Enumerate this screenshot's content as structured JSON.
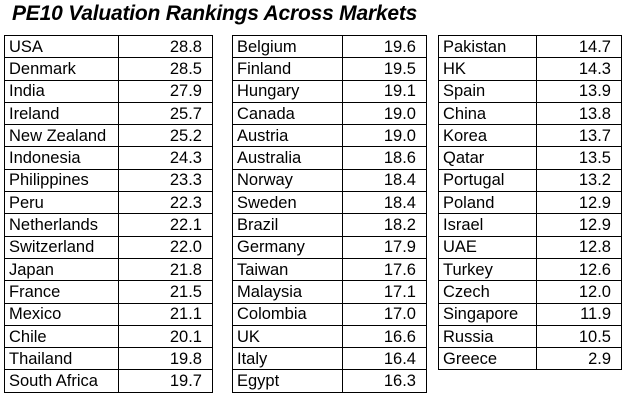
{
  "title": "PE10 Valuation Rankings Across Markets",
  "chart_data": {
    "type": "table",
    "title": "PE10 Valuation Rankings Across Markets",
    "columns": [
      [
        {
          "country": "USA",
          "value": "28.8"
        },
        {
          "country": "Denmark",
          "value": "28.5"
        },
        {
          "country": "India",
          "value": "27.9"
        },
        {
          "country": "Ireland",
          "value": "25.7"
        },
        {
          "country": "New Zealand",
          "value": "25.2"
        },
        {
          "country": "Indonesia",
          "value": "24.3"
        },
        {
          "country": "Philippines",
          "value": "23.3"
        },
        {
          "country": "Peru",
          "value": "22.3"
        },
        {
          "country": "Netherlands",
          "value": "22.1"
        },
        {
          "country": "Switzerland",
          "value": "22.0"
        },
        {
          "country": "Japan",
          "value": "21.8"
        },
        {
          "country": "France",
          "value": "21.5"
        },
        {
          "country": "Mexico",
          "value": "21.1"
        },
        {
          "country": "Chile",
          "value": "20.1"
        },
        {
          "country": "Thailand",
          "value": "19.8"
        },
        {
          "country": "South Africa",
          "value": "19.7"
        }
      ],
      [
        {
          "country": "Belgium",
          "value": "19.6"
        },
        {
          "country": "Finland",
          "value": "19.5"
        },
        {
          "country": "Hungary",
          "value": "19.1"
        },
        {
          "country": "Canada",
          "value": "19.0"
        },
        {
          "country": "Austria",
          "value": "19.0"
        },
        {
          "country": "Australia",
          "value": "18.6"
        },
        {
          "country": "Norway",
          "value": "18.4"
        },
        {
          "country": "Sweden",
          "value": "18.4"
        },
        {
          "country": "Brazil",
          "value": "18.2"
        },
        {
          "country": "Germany",
          "value": "17.9"
        },
        {
          "country": "Taiwan",
          "value": "17.6"
        },
        {
          "country": "Malaysia",
          "value": "17.1"
        },
        {
          "country": "Colombia",
          "value": "17.0"
        },
        {
          "country": "UK",
          "value": "16.6"
        },
        {
          "country": "Italy",
          "value": "16.4"
        },
        {
          "country": "Egypt",
          "value": "16.3"
        }
      ],
      [
        {
          "country": "Pakistan",
          "value": "14.7"
        },
        {
          "country": "HK",
          "value": "14.3"
        },
        {
          "country": "Spain",
          "value": "13.9"
        },
        {
          "country": "China",
          "value": "13.8"
        },
        {
          "country": "Korea",
          "value": "13.7"
        },
        {
          "country": "Qatar",
          "value": "13.5"
        },
        {
          "country": "Portugal",
          "value": "13.2"
        },
        {
          "country": "Poland",
          "value": "12.9"
        },
        {
          "country": "Israel",
          "value": "12.9"
        },
        {
          "country": "UAE",
          "value": "12.8"
        },
        {
          "country": "Turkey",
          "value": "12.6"
        },
        {
          "country": "Czech",
          "value": "12.0"
        },
        {
          "country": "Singapore",
          "value": "11.9"
        },
        {
          "country": "Russia",
          "value": "10.5"
        },
        {
          "country": "Greece",
          "value": "2.9"
        }
      ]
    ]
  }
}
